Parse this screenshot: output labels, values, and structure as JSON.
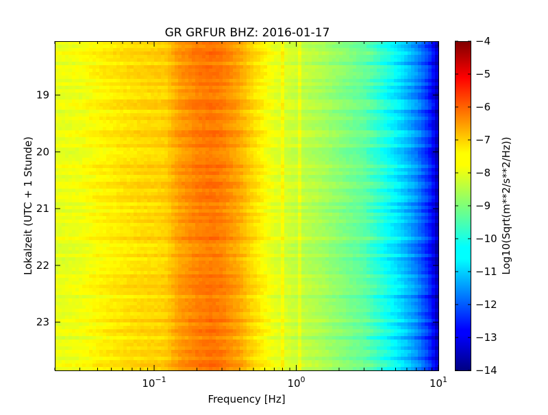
{
  "chart_data": {
    "type": "heatmap",
    "title": "GR GRFUR BHZ: 2016-01-17",
    "xlabel": "Frequency [Hz]",
    "ylabel": "Lokalzeit (UTC + 1 Stunde)",
    "colorbar_label": "Log10(Sqrt(m**2/s**2/Hz))",
    "x_scale": "log",
    "xlim": [
      0.02,
      10
    ],
    "x_ticks": [
      {
        "base": "10",
        "exp": "−1"
      },
      {
        "base": "10",
        "exp": "0"
      },
      {
        "base": "10",
        "exp": "1"
      }
    ],
    "x_tick_values": [
      0.1,
      1,
      10
    ],
    "ylim": [
      18.05,
      23.85
    ],
    "y_inverted": true,
    "y_ticks": [
      "19",
      "20",
      "21",
      "22",
      "23"
    ],
    "y_tick_values": [
      19,
      20,
      21,
      22,
      23
    ],
    "colorbar": {
      "colormap": "jet",
      "range": [
        -14,
        -4
      ],
      "ticks": [
        "−4",
        "−5",
        "−6",
        "−7",
        "−8",
        "−9",
        "−10",
        "−11",
        "−12",
        "−13",
        "−14"
      ],
      "tick_values": [
        -4,
        -5,
        -6,
        -7,
        -8,
        -9,
        -10,
        -11,
        -12,
        -13,
        -14
      ]
    },
    "spectrum_profile": {
      "frequency": [
        0.02,
        0.03,
        0.04,
        0.06,
        0.08,
        0.12,
        0.15,
        0.2,
        0.25,
        0.3,
        0.4,
        0.5,
        0.7,
        1.0,
        1.5,
        2,
        3,
        4,
        5,
        6,
        7,
        8,
        9,
        10
      ],
      "value": [
        -8.0,
        -7.9,
        -7.7,
        -7.5,
        -7.4,
        -7.3,
        -6.8,
        -6.5,
        -6.4,
        -6.5,
        -6.9,
        -7.4,
        -8.0,
        -8.3,
        -8.6,
        -8.9,
        -9.3,
        -9.9,
        -10.4,
        -10.9,
        -11.4,
        -12.0,
        -12.6,
        -13.6
      ]
    },
    "time_range": [
      18.05,
      23.85
    ]
  }
}
